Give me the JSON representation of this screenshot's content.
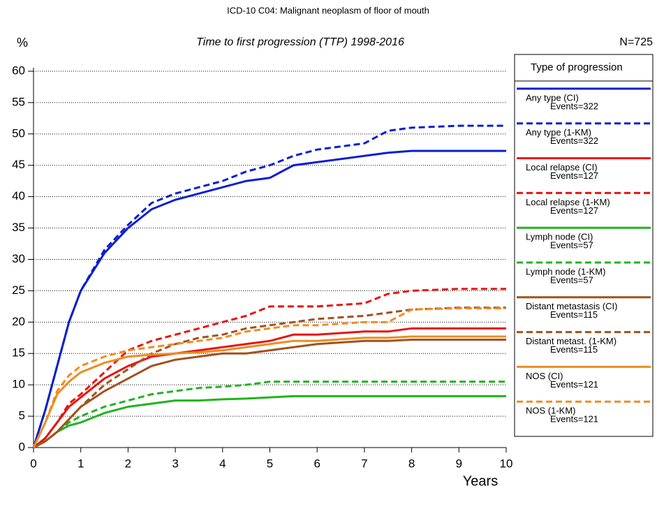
{
  "chart_data": {
    "type": "line",
    "title": "ICD-10 C04: Malignant neoplasm of floor of mouth",
    "subtitle": "Time to first progression (TTP) 1998-2016",
    "n_label": "N=725",
    "y_label": "%",
    "x_label": "Years",
    "legend_title": "Type of progression",
    "x": [
      0,
      0.25,
      0.5,
      0.75,
      1,
      1.5,
      2,
      2.5,
      3,
      3.5,
      4,
      4.5,
      5,
      5.5,
      6,
      7,
      7.5,
      8,
      9,
      10
    ],
    "xlim": [
      0,
      10
    ],
    "xticks": [
      0,
      1,
      2,
      3,
      4,
      5,
      6,
      7,
      8,
      9,
      10
    ],
    "ylim": [
      0,
      60
    ],
    "yticks": [
      0,
      5,
      10,
      15,
      20,
      25,
      30,
      35,
      40,
      45,
      50,
      55,
      60
    ],
    "grid": true,
    "series": [
      {
        "name": "Any type (CI)",
        "events": "Events=322",
        "color": "#0a1fd0",
        "dash": false,
        "values": [
          0,
          6,
          13,
          20,
          25,
          31,
          35,
          38,
          39.5,
          40.5,
          41.5,
          42.5,
          43,
          45,
          45.5,
          46.5,
          47,
          47.3,
          47.3,
          47.3
        ]
      },
      {
        "name": "Any type (1-KM)",
        "events": "Events=322",
        "color": "#0a1fd0",
        "dash": true,
        "values": [
          0,
          6,
          13,
          20,
          25,
          31.5,
          35.5,
          39,
          40.5,
          41.5,
          42.5,
          44,
          45,
          46.5,
          47.5,
          48.5,
          50.5,
          51,
          51.3,
          51.3
        ]
      },
      {
        "name": "Local relapse (CI)",
        "events": "Events=127",
        "color": "#e8140f",
        "dash": false,
        "values": [
          0,
          1.5,
          4,
          6.5,
          8,
          11,
          13,
          14.5,
          15,
          15.5,
          16,
          16.5,
          17,
          18,
          18,
          18.5,
          18.5,
          19,
          19,
          19
        ]
      },
      {
        "name": "Local relapse (1-KM)",
        "events": "Events=127",
        "color": "#e8140f",
        "dash": true,
        "values": [
          0,
          1.5,
          4,
          7,
          8.5,
          12,
          15.5,
          17,
          18,
          19,
          20,
          21,
          22.5,
          22.5,
          22.5,
          23,
          24.5,
          25,
          25.3,
          25.3
        ]
      },
      {
        "name": "Lymph node (CI)",
        "events": "Events=57",
        "color": "#20b41e",
        "dash": false,
        "values": [
          0,
          1,
          2.5,
          3.5,
          4,
          5.5,
          6.5,
          7,
          7.5,
          7.5,
          7.7,
          7.8,
          8,
          8.2,
          8.2,
          8.2,
          8.2,
          8.2,
          8.2,
          8.2
        ]
      },
      {
        "name": "Lymph node (1-KM)",
        "events": "Events=57",
        "color": "#20b41e",
        "dash": true,
        "values": [
          0,
          1,
          2.5,
          4,
          5,
          6.5,
          7.5,
          8.5,
          9,
          9.5,
          9.7,
          10,
          10.5,
          10.5,
          10.5,
          10.5,
          10.5,
          10.5,
          10.5,
          10.5
        ]
      },
      {
        "name": "Distant metastasis (CI)",
        "events": "Events=115",
        "color": "#a0521e",
        "dash": false,
        "values": [
          0,
          1,
          2.5,
          4.5,
          6.5,
          9,
          11,
          13,
          14,
          14.5,
          15,
          15,
          15.5,
          16,
          16.5,
          17,
          17,
          17.2,
          17.2,
          17.2
        ]
      },
      {
        "name": "Distant metast. (1-KM)",
        "events": "Events=115",
        "color": "#a0521e",
        "dash": true,
        "values": [
          0,
          1,
          2.5,
          4.5,
          6.5,
          10,
          12.5,
          15,
          16.5,
          17.5,
          18,
          19,
          19.5,
          20,
          20.5,
          21,
          21.5,
          22,
          22.3,
          22.3
        ]
      },
      {
        "name": "NOS (CI)",
        "events": "Events=121",
        "color": "#f08c1e",
        "dash": false,
        "values": [
          0,
          4,
          8.5,
          10.5,
          12,
          13.5,
          14.5,
          14.8,
          15,
          15.2,
          15.5,
          16,
          16.5,
          17,
          17,
          17.5,
          17.5,
          17.7,
          17.7,
          17.7
        ]
      },
      {
        "name": "NOS (1-KM)",
        "events": "Events=121",
        "color": "#f08c1e",
        "dash": true,
        "values": [
          0,
          4,
          9,
          11.5,
          13,
          14.5,
          15.5,
          16,
          16.5,
          17,
          17.5,
          18.5,
          19,
          19.5,
          19.5,
          20,
          20,
          22,
          22.2,
          22.2
        ]
      }
    ]
  }
}
